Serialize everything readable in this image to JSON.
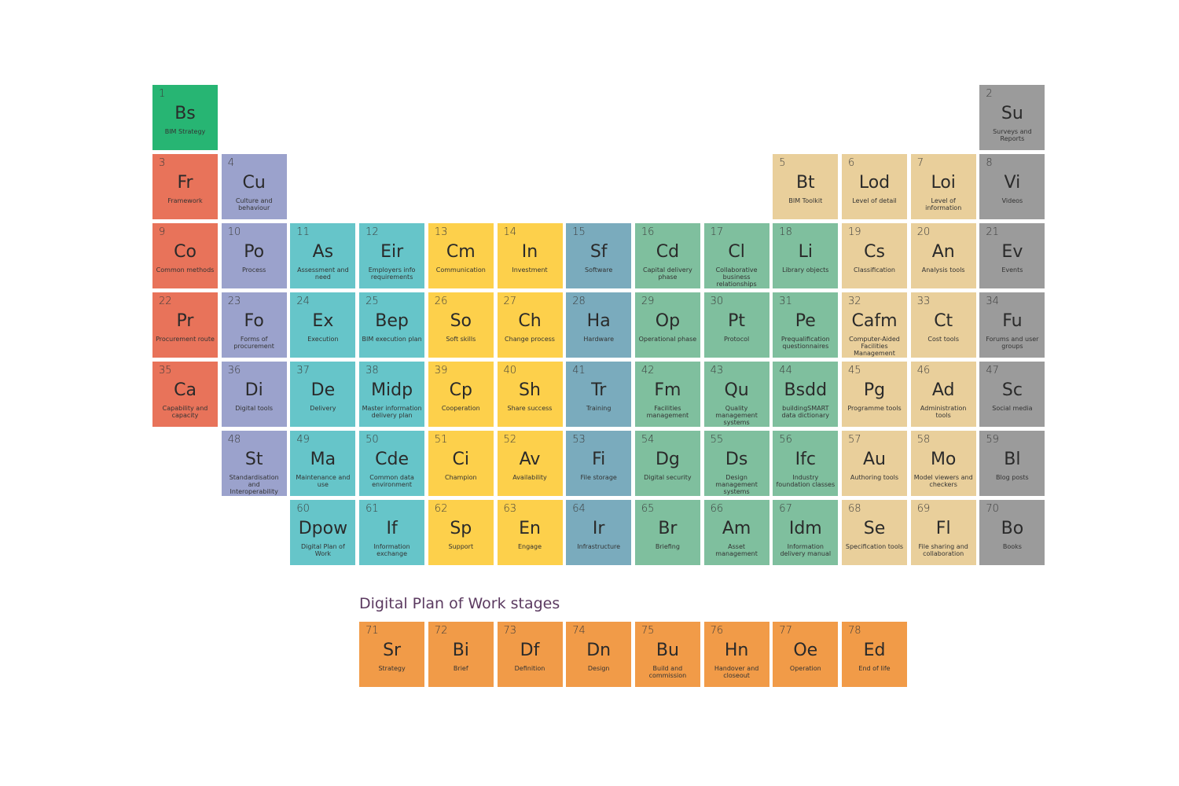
{
  "palette": {
    "strategy": "#27b573",
    "red": "#e8735a",
    "purple": "#9ba2cc",
    "teal": "#66c5c9",
    "yellow": "#fdd04b",
    "blue": "#7aabbd",
    "green": "#7fbf9e",
    "tan": "#e9cf9b",
    "grey": "#9b9b9b",
    "orange": "#f19b48"
  },
  "stages_title": "Digital Plan of Work stages",
  "elements": [
    {
      "n": "1",
      "s": "Bs",
      "name": "BIM Strategy",
      "c": "strategy"
    },
    {
      "n": "2",
      "s": "Su",
      "name": "Surveys and Reports",
      "c": "grey"
    },
    {
      "n": "3",
      "s": "Fr",
      "name": "Framework",
      "c": "red"
    },
    {
      "n": "4",
      "s": "Cu",
      "name": "Culture and behaviour",
      "c": "purple"
    },
    {
      "n": "5",
      "s": "Bt",
      "name": "BIM Toolkit",
      "c": "tan"
    },
    {
      "n": "6",
      "s": "Lod",
      "name": "Level of detail",
      "c": "tan"
    },
    {
      "n": "7",
      "s": "Loi",
      "name": "Level of information",
      "c": "tan"
    },
    {
      "n": "8",
      "s": "Vi",
      "name": "Videos",
      "c": "grey"
    },
    {
      "n": "9",
      "s": "Co",
      "name": "Common methods",
      "c": "red"
    },
    {
      "n": "10",
      "s": "Po",
      "name": "Process",
      "c": "purple"
    },
    {
      "n": "11",
      "s": "As",
      "name": "Assessment and need",
      "c": "teal"
    },
    {
      "n": "12",
      "s": "Eir",
      "name": "Employers info requirements",
      "c": "teal"
    },
    {
      "n": "13",
      "s": "Cm",
      "name": "Communication",
      "c": "yellow"
    },
    {
      "n": "14",
      "s": "In",
      "name": "Investment",
      "c": "yellow"
    },
    {
      "n": "15",
      "s": "Sf",
      "name": "Software",
      "c": "blue"
    },
    {
      "n": "16",
      "s": "Cd",
      "name": "Capital delivery phase",
      "c": "green"
    },
    {
      "n": "17",
      "s": "Cl",
      "name": "Collaborative business relationships",
      "c": "green"
    },
    {
      "n": "18",
      "s": "Li",
      "name": "Library objects",
      "c": "green"
    },
    {
      "n": "19",
      "s": "Cs",
      "name": "Classification",
      "c": "tan"
    },
    {
      "n": "20",
      "s": "An",
      "name": "Analysis tools",
      "c": "tan"
    },
    {
      "n": "21",
      "s": "Ev",
      "name": "Events",
      "c": "grey"
    },
    {
      "n": "22",
      "s": "Pr",
      "name": "Procurement route",
      "c": "red"
    },
    {
      "n": "23",
      "s": "Fo",
      "name": "Forms of procurement",
      "c": "purple"
    },
    {
      "n": "24",
      "s": "Ex",
      "name": "Execution",
      "c": "teal"
    },
    {
      "n": "25",
      "s": "Bep",
      "name": "BIM execution plan",
      "c": "teal"
    },
    {
      "n": "26",
      "s": "So",
      "name": "Soft skills",
      "c": "yellow"
    },
    {
      "n": "27",
      "s": "Ch",
      "name": "Change process",
      "c": "yellow"
    },
    {
      "n": "28",
      "s": "Ha",
      "name": "Hardware",
      "c": "blue"
    },
    {
      "n": "29",
      "s": "Op",
      "name": "Operational phase",
      "c": "green"
    },
    {
      "n": "30",
      "s": "Pt",
      "name": "Protocol",
      "c": "green"
    },
    {
      "n": "31",
      "s": "Pe",
      "name": "Prequalification questionnaires",
      "c": "green"
    },
    {
      "n": "32",
      "s": "Cafm",
      "name": "Computer-Aided Facilities Management",
      "c": "tan"
    },
    {
      "n": "33",
      "s": "Ct",
      "name": "Cost tools",
      "c": "tan"
    },
    {
      "n": "34",
      "s": "Fu",
      "name": "Forums and user groups",
      "c": "grey"
    },
    {
      "n": "35",
      "s": "Ca",
      "name": "Capability and capacity",
      "c": "red"
    },
    {
      "n": "36",
      "s": "Di",
      "name": "Digital tools",
      "c": "purple"
    },
    {
      "n": "37",
      "s": "De",
      "name": "Delivery",
      "c": "teal"
    },
    {
      "n": "38",
      "s": "Midp",
      "name": "Master information delivery plan",
      "c": "teal"
    },
    {
      "n": "39",
      "s": "Cp",
      "name": "Cooperation",
      "c": "yellow"
    },
    {
      "n": "40",
      "s": "Sh",
      "name": "Share success",
      "c": "yellow"
    },
    {
      "n": "41",
      "s": "Tr",
      "name": "Training",
      "c": "blue"
    },
    {
      "n": "42",
      "s": "Fm",
      "name": "Facilities management",
      "c": "green"
    },
    {
      "n": "43",
      "s": "Qu",
      "name": "Quality management systems",
      "c": "green"
    },
    {
      "n": "44",
      "s": "Bsdd",
      "name": "buildingSMART data dictionary",
      "c": "green"
    },
    {
      "n": "45",
      "s": "Pg",
      "name": "Programme tools",
      "c": "tan"
    },
    {
      "n": "46",
      "s": "Ad",
      "name": "Administration tools",
      "c": "tan"
    },
    {
      "n": "47",
      "s": "Sc",
      "name": "Social media",
      "c": "grey"
    },
    {
      "n": "48",
      "s": "St",
      "name": "Standardisation and Interoperability",
      "c": "purple"
    },
    {
      "n": "49",
      "s": "Ma",
      "name": "Maintenance and use",
      "c": "teal"
    },
    {
      "n": "50",
      "s": "Cde",
      "name": "Common data environment",
      "c": "teal"
    },
    {
      "n": "51",
      "s": "Ci",
      "name": "Champion",
      "c": "yellow"
    },
    {
      "n": "52",
      "s": "Av",
      "name": "Availability",
      "c": "yellow"
    },
    {
      "n": "53",
      "s": "Fi",
      "name": "File storage",
      "c": "blue"
    },
    {
      "n": "54",
      "s": "Dg",
      "name": "Digital security",
      "c": "green"
    },
    {
      "n": "55",
      "s": "Ds",
      "name": "Design management systems",
      "c": "green"
    },
    {
      "n": "56",
      "s": "Ifc",
      "name": "Industry foundation classes",
      "c": "green"
    },
    {
      "n": "57",
      "s": "Au",
      "name": "Authoring tools",
      "c": "tan"
    },
    {
      "n": "58",
      "s": "Mo",
      "name": "Model viewers and checkers",
      "c": "tan"
    },
    {
      "n": "59",
      "s": "Bl",
      "name": "Blog posts",
      "c": "grey"
    },
    {
      "n": "60",
      "s": "Dpow",
      "name": "Digital Plan of Work",
      "c": "teal"
    },
    {
      "n": "61",
      "s": "If",
      "name": "Information exchange",
      "c": "teal"
    },
    {
      "n": "62",
      "s": "Sp",
      "name": "Support",
      "c": "yellow"
    },
    {
      "n": "63",
      "s": "En",
      "name": "Engage",
      "c": "yellow"
    },
    {
      "n": "64",
      "s": "Ir",
      "name": "Infrastructure",
      "c": "blue"
    },
    {
      "n": "65",
      "s": "Br",
      "name": "Briefing",
      "c": "green"
    },
    {
      "n": "66",
      "s": "Am",
      "name": "Asset management",
      "c": "green"
    },
    {
      "n": "67",
      "s": "Idm",
      "name": "Information delivery manual",
      "c": "green"
    },
    {
      "n": "68",
      "s": "Se",
      "name": "Specification tools",
      "c": "tan"
    },
    {
      "n": "69",
      "s": "Fl",
      "name": "File sharing and collaboration",
      "c": "tan"
    },
    {
      "n": "70",
      "s": "Bo",
      "name": "Books",
      "c": "grey"
    },
    {
      "n": "71",
      "s": "Sr",
      "name": "Strategy",
      "c": "orange"
    },
    {
      "n": "72",
      "s": "Bi",
      "name": "Brief",
      "c": "orange"
    },
    {
      "n": "73",
      "s": "Df",
      "name": "Definition",
      "c": "orange"
    },
    {
      "n": "74",
      "s": "Dn",
      "name": "Design",
      "c": "orange"
    },
    {
      "n": "75",
      "s": "Bu",
      "name": "Build and commission",
      "c": "orange"
    },
    {
      "n": "76",
      "s": "Hn",
      "name": "Handover and closeout",
      "c": "orange"
    },
    {
      "n": "77",
      "s": "Oe",
      "name": "Operation",
      "c": "orange"
    },
    {
      "n": "78",
      "s": "Ed",
      "name": "End of life",
      "c": "orange"
    }
  ]
}
